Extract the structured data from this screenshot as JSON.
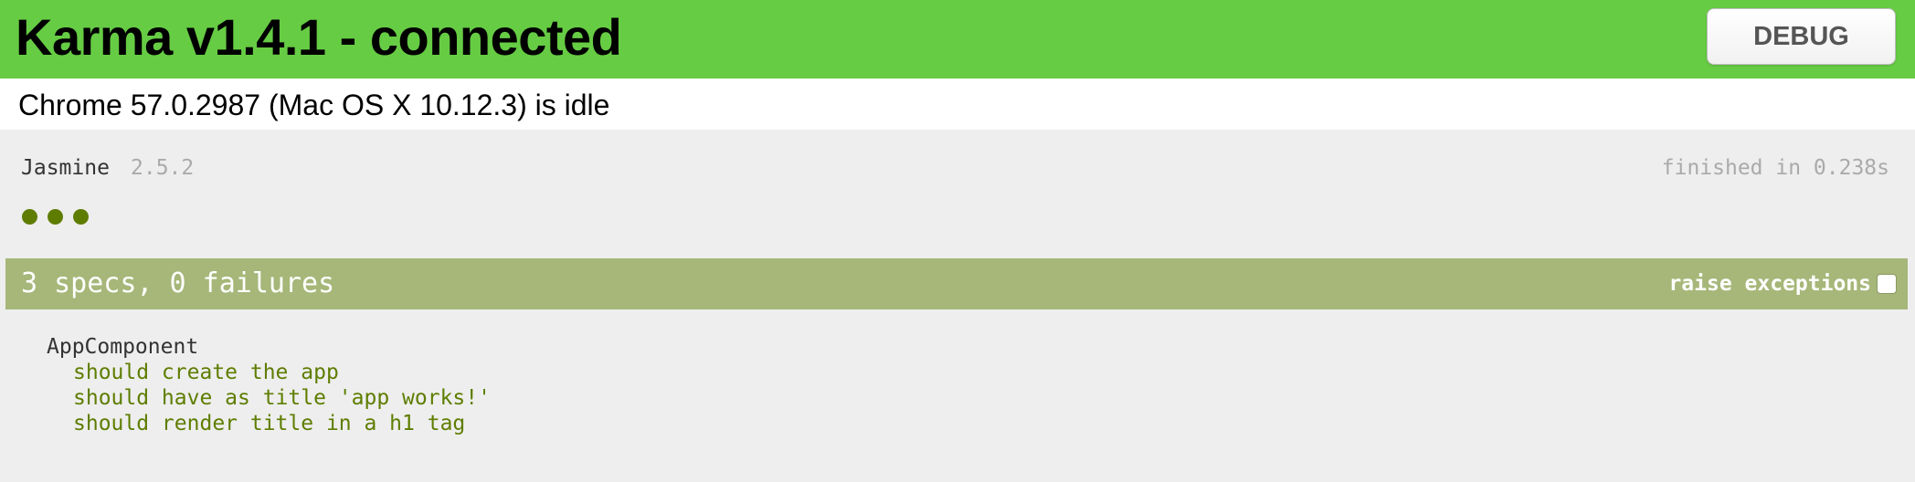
{
  "banner": {
    "title": "Karma v1.4.1 - connected",
    "debug_label": "DEBUG",
    "color": "#66cc44"
  },
  "browser": {
    "status": "Chrome 57.0.2987 (Mac OS X 10.12.3) is idle"
  },
  "jasmine": {
    "title": "Jasmine",
    "version": "2.5.2",
    "duration": "finished in 0.238s",
    "spec_count_dots": 3,
    "summary": "3 specs, 0 failures",
    "summary_color": "#a6b779",
    "raise_exceptions_label": "raise exceptions",
    "raise_exceptions_checked": false,
    "suites": [
      {
        "title": "AppComponent",
        "specs": [
          "should create the app",
          "should have as title 'app works!'",
          "should render title in a h1 tag"
        ]
      }
    ],
    "pass_color": "#5e7d00"
  }
}
